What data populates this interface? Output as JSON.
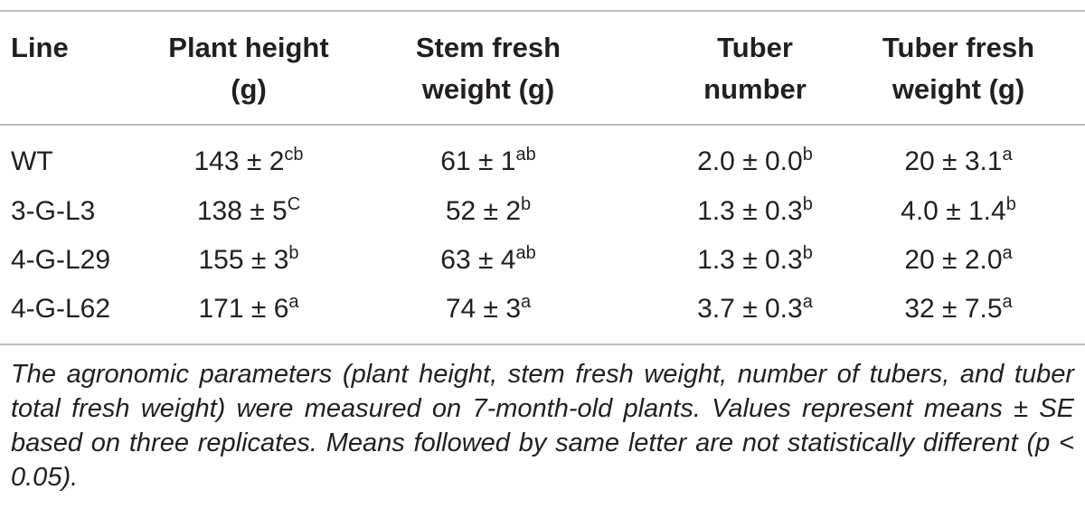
{
  "table": {
    "headers": [
      [
        "Line"
      ],
      [
        "Plant height",
        "(g)"
      ],
      [
        "Stem fresh",
        "weight (g)"
      ],
      [
        "Tuber",
        "number"
      ],
      [
        "Tuber fresh",
        "weight (g)"
      ]
    ],
    "rows": [
      {
        "line": "WT",
        "plant_height": {
          "value": "143 ± 2",
          "sup": "cb"
        },
        "stem_fresh_weight": {
          "value": "61 ± 1",
          "sup": "ab"
        },
        "tuber_number": {
          "value": "2.0 ± 0.0",
          "sup": "b"
        },
        "tuber_fresh_weight": {
          "value": "20 ± 3.1",
          "sup": "a"
        }
      },
      {
        "line": "3-G-L3",
        "plant_height": {
          "value": "138 ± 5",
          "sup": "C"
        },
        "stem_fresh_weight": {
          "value": "52 ± 2",
          "sup": "b"
        },
        "tuber_number": {
          "value": "1.3 ± 0.3",
          "sup": "b"
        },
        "tuber_fresh_weight": {
          "value": "4.0 ± 1.4",
          "sup": "b"
        }
      },
      {
        "line": "4-G-L29",
        "plant_height": {
          "value": "155 ± 3",
          "sup": "b"
        },
        "stem_fresh_weight": {
          "value": "63 ± 4",
          "sup": "ab"
        },
        "tuber_number": {
          "value": "1.3 ± 0.3",
          "sup": "b"
        },
        "tuber_fresh_weight": {
          "value": "20 ± 2.0",
          "sup": "a"
        }
      },
      {
        "line": "4-G-L62",
        "plant_height": {
          "value": "171 ± 6",
          "sup": "a"
        },
        "stem_fresh_weight": {
          "value": "74 ± 3",
          "sup": "a"
        },
        "tuber_number": {
          "value": "3.7 ± 0.3",
          "sup": "a"
        },
        "tuber_fresh_weight": {
          "value": "32 ± 7.5",
          "sup": "a"
        }
      }
    ]
  },
  "footnote": "The agronomic parameters (plant height, stem fresh weight, number of tubers, and tuber total fresh weight) were measured on 7-month-old plants. Values represent means ± SE based on three replicates. Means followed by same letter are not statistically different (p < 0.05).",
  "colors": {
    "text": "#231f20",
    "rule": "#bdbdbd"
  }
}
